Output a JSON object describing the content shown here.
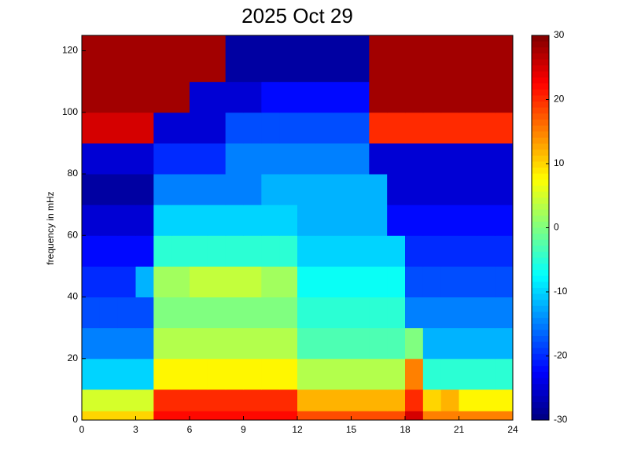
{
  "chart_data": {
    "type": "heatmap",
    "title": "2025 Oct 29",
    "y_label": "frequency in mHz",
    "colormap": "jet",
    "x_edges": [
      0,
      1,
      2,
      3,
      4,
      5,
      6,
      7,
      8,
      9,
      10,
      11,
      12,
      13,
      14,
      15,
      16,
      17,
      18,
      19,
      20,
      21,
      22,
      23,
      24
    ],
    "y_edges": [
      0,
      3,
      10,
      20,
      30,
      40,
      50,
      60,
      70,
      80,
      90,
      100,
      110,
      125
    ],
    "z": [
      [
        10,
        10,
        10,
        10,
        22,
        22,
        22,
        22,
        22,
        22,
        22,
        22,
        18,
        18,
        18,
        18,
        18,
        18,
        25,
        15,
        15,
        15,
        15,
        15
      ],
      [
        5,
        5,
        5,
        5,
        20,
        20,
        20,
        20,
        20,
        20,
        20,
        20,
        12,
        12,
        12,
        12,
        12,
        12,
        20,
        10,
        12,
        8,
        8,
        8
      ],
      [
        -10,
        -10,
        -10,
        -10,
        8,
        8,
        8,
        8,
        8,
        8,
        8,
        8,
        3,
        3,
        3,
        3,
        3,
        3,
        15,
        -5,
        -5,
        -5,
        -5,
        -5
      ],
      [
        -15,
        -15,
        -15,
        -15,
        3,
        3,
        3,
        3,
        3,
        3,
        3,
        3,
        -3,
        -3,
        -3,
        -3,
        -3,
        -3,
        0,
        -12,
        -12,
        -12,
        -12,
        -12
      ],
      [
        -18,
        -18,
        -18,
        -18,
        0,
        0,
        0,
        0,
        0,
        0,
        0,
        0,
        -5,
        -5,
        -5,
        -5,
        -5,
        -5,
        -15,
        -15,
        -15,
        -15,
        -15,
        -15
      ],
      [
        -20,
        -20,
        -20,
        -12,
        2,
        2,
        4,
        4,
        4,
        4,
        2,
        2,
        -7,
        -7,
        -7,
        -7,
        -7,
        -7,
        -18,
        -18,
        -18,
        -18,
        -18,
        -18
      ],
      [
        -22,
        -22,
        -22,
        -22,
        -5,
        -5,
        -5,
        -5,
        -5,
        -5,
        -5,
        -5,
        -10,
        -10,
        -10,
        -10,
        -10,
        -10,
        -20,
        -20,
        -20,
        -20,
        -20,
        -20
      ],
      [
        -25,
        -25,
        -25,
        -25,
        -10,
        -10,
        -10,
        -10,
        -10,
        -10,
        -10,
        -10,
        -12,
        -12,
        -12,
        -12,
        -12,
        -22,
        -22,
        -22,
        -22,
        -22,
        -22,
        -22
      ],
      [
        -28,
        -28,
        -28,
        -28,
        -15,
        -15,
        -15,
        -15,
        -15,
        -15,
        -12,
        -12,
        -12,
        -12,
        -12,
        -12,
        -12,
        -25,
        -25,
        -25,
        -25,
        -25,
        -25,
        -25
      ],
      [
        -25,
        -25,
        -25,
        -25,
        -20,
        -20,
        -20,
        -20,
        -15,
        -15,
        -15,
        -15,
        -15,
        -15,
        -15,
        -15,
        -25,
        -25,
        -25,
        -25,
        -25,
        -25,
        -25,
        -25
      ],
      [
        25,
        25,
        25,
        25,
        -25,
        -25,
        -25,
        -25,
        -18,
        -18,
        -18,
        -18,
        -18,
        -18,
        -18,
        -18,
        20,
        20,
        20,
        20,
        20,
        20,
        20,
        20
      ],
      [
        28,
        28,
        28,
        28,
        28,
        28,
        -25,
        -25,
        -25,
        -25,
        -22,
        -22,
        -22,
        -22,
        -22,
        -22,
        28,
        28,
        28,
        28,
        28,
        28,
        28,
        28
      ],
      [
        28,
        28,
        28,
        28,
        28,
        28,
        28,
        28,
        -28,
        -28,
        -28,
        -28,
        -28,
        -28,
        -28,
        -28,
        28,
        28,
        28,
        28,
        28,
        28,
        28,
        28
      ]
    ],
    "xlim": [
      0,
      24
    ],
    "xticks": [
      0,
      3,
      6,
      9,
      12,
      15,
      18,
      21,
      24
    ],
    "ylim": [
      0,
      125
    ],
    "yticks": [
      0,
      20,
      40,
      60,
      80,
      100,
      120
    ],
    "clim": [
      -30,
      30
    ],
    "cticks": [
      -30,
      -20,
      -10,
      0,
      10,
      20,
      30
    ]
  }
}
